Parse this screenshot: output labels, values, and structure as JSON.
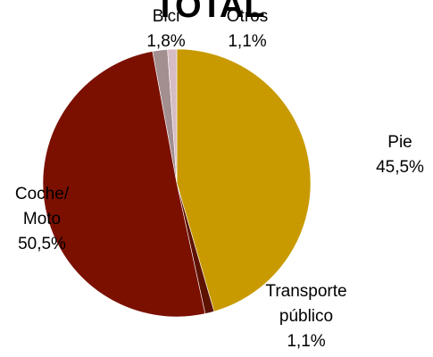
{
  "chart_data": {
    "type": "pie",
    "title": "TOTAL",
    "categories": [
      "Pie",
      "Transporte\npúblico",
      "Coche/\nMoto",
      "Bici",
      "Otros"
    ],
    "values": [
      45.5,
      1.1,
      50.5,
      1.8,
      1.1
    ],
    "value_labels": [
      "45,5%",
      "1,1%",
      "50,5%",
      "1,8%",
      "1,1%"
    ],
    "colors": [
      "#c89a00",
      "#5e1200",
      "#7b1000",
      "#a38e90",
      "#d6bcc4"
    ]
  }
}
